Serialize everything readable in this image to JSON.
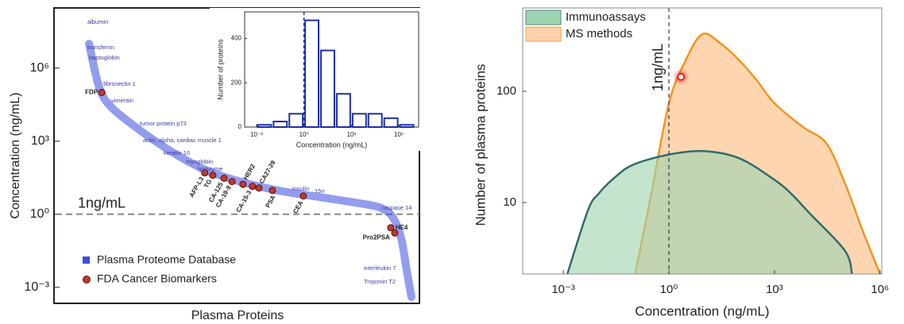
{
  "chart_data": [
    {
      "type": "line",
      "y_label": "Concentration (ng/mL)",
      "x_label": "Plasma Proteins",
      "log_scale_y": true,
      "xlim": [
        0,
        100
      ],
      "ylim": [
        0.00022,
        295000000
      ],
      "yticks": [
        {
          "value": 0.001,
          "label": "10⁻³"
        },
        {
          "value": 1,
          "label": "10⁰"
        },
        {
          "value": 1000,
          "label": "10³"
        },
        {
          "value": 1000000,
          "label": "10⁶"
        }
      ],
      "reference_line": {
        "value": 1,
        "label": "1ng/mL"
      },
      "series": [
        {
          "name": "Plasma Proteome Database",
          "color": "#3b4de0",
          "x": [
            9.2,
            12,
            15.3,
            21.8,
            28.4,
            34.9,
            41.5,
            50.2,
            61.1,
            72.1,
            83,
            89.5,
            92.8,
            95,
            96.5,
            97.8
          ],
          "values": [
            10000000,
            160000,
            25000,
            4000,
            800,
            200,
            63,
            23,
            9.5,
            5.2,
            2.9,
            1.8,
            0.7,
            0.1,
            0.005,
            0.0004
          ]
        },
        {
          "name": "FDA Cancer Biomarkers",
          "color": "#c0392b",
          "x": [
            12.7,
            41,
            43.2,
            46.3,
            48.5,
            51.5,
            54.1,
            55.9,
            59.6,
            68.1,
            92.1,
            93.2
          ],
          "values": [
            100000,
            50,
            40,
            30,
            22,
            17,
            14,
            12,
            9.5,
            5.6,
            0.28,
            0.17
          ],
          "labels": [
            "FDP",
            "AFP-L3",
            "TG",
            "CA-125",
            "CA-19-9",
            "HER2",
            "CA-15-3",
            "CA27-29",
            "PSA",
            "CEA",
            "HE4",
            "Pro2PSA"
          ]
        }
      ],
      "annotations": [
        "albumin",
        "transferrin",
        "haptoglobin",
        "fibronectin 1",
        "vimentin",
        "tumor protein p73",
        "actin, alpha, cardiac muscle 1",
        "keratin 10",
        "myoglobin",
        "lysozyme",
        "insulin",
        "15n",
        "caspase 14",
        "interleukin 7",
        "Troponin T2"
      ]
    },
    {
      "type": "histogram",
      "x_label": "Concentration (ng/mL)",
      "y_label": "Number of proteins",
      "log_scale_x": true,
      "color": "#1f2fa8",
      "bins": [
        0.001,
        0.01,
        0.1,
        1,
        10,
        100,
        1000,
        10000,
        100000,
        1000000,
        10000000
      ],
      "values": [
        10,
        25,
        60,
        482,
        346,
        150,
        60,
        60,
        40,
        10
      ],
      "xlim": [
        0.000178,
        17800000
      ],
      "ylim": [
        0,
        520
      ],
      "xticks": [
        {
          "value": 0.001,
          "label": "10⁻³"
        },
        {
          "value": 1,
          "label": "10⁰"
        },
        {
          "value": 1000,
          "label": "10³"
        },
        {
          "value": 1000000,
          "label": "10⁶"
        }
      ],
      "yticks": [
        0,
        200,
        400
      ],
      "reference_line": {
        "value": 1
      }
    },
    {
      "type": "area",
      "x_label": "Concentration (ng/mL)",
      "y_label": "Number of plasma proteins",
      "log_scale_x": true,
      "log_scale_y": true,
      "legend": "top-left",
      "xlim": [
        7e-05,
        1120000
      ],
      "ylim": [
        2.28,
        562
      ],
      "xticks": [
        {
          "value": 0.001,
          "label": "10⁻³"
        },
        {
          "value": 1,
          "label": "10⁰"
        },
        {
          "value": 1000,
          "label": "10³"
        },
        {
          "value": 1000000,
          "label": "10⁶"
        }
      ],
      "yticks": [
        10,
        100
      ],
      "reference_line": {
        "value": 1,
        "label": "1ng/mL"
      },
      "series": [
        {
          "name": "Immunoassays",
          "color": "#2f6d6b",
          "fill": "#9fd3b0",
          "x": [
            0.0013,
            0.005,
            0.01,
            0.03,
            0.1,
            1,
            10,
            100,
            1000,
            3000,
            10000,
            100000,
            160000
          ],
          "values": [
            2.28,
            8.5,
            12,
            17,
            22,
            27,
            29,
            25,
            16,
            12,
            8,
            3.7,
            2.28
          ]
        },
        {
          "name": "MS methods",
          "color": "#f39420",
          "fill": "#fdd2aa",
          "x": [
            0.11,
            0.3,
            1,
            3,
            9,
            30,
            100,
            300,
            1000,
            6300,
            30000,
            100000,
            320000,
            1000000
          ],
          "values": [
            2.28,
            11,
            78,
            190,
            327,
            268,
            190,
            128,
            78,
            48,
            34,
            15,
            5.6,
            2.28
          ]
        }
      ],
      "highlight": {
        "x": 2.2,
        "value": 135,
        "color": "#e8232a"
      }
    }
  ]
}
